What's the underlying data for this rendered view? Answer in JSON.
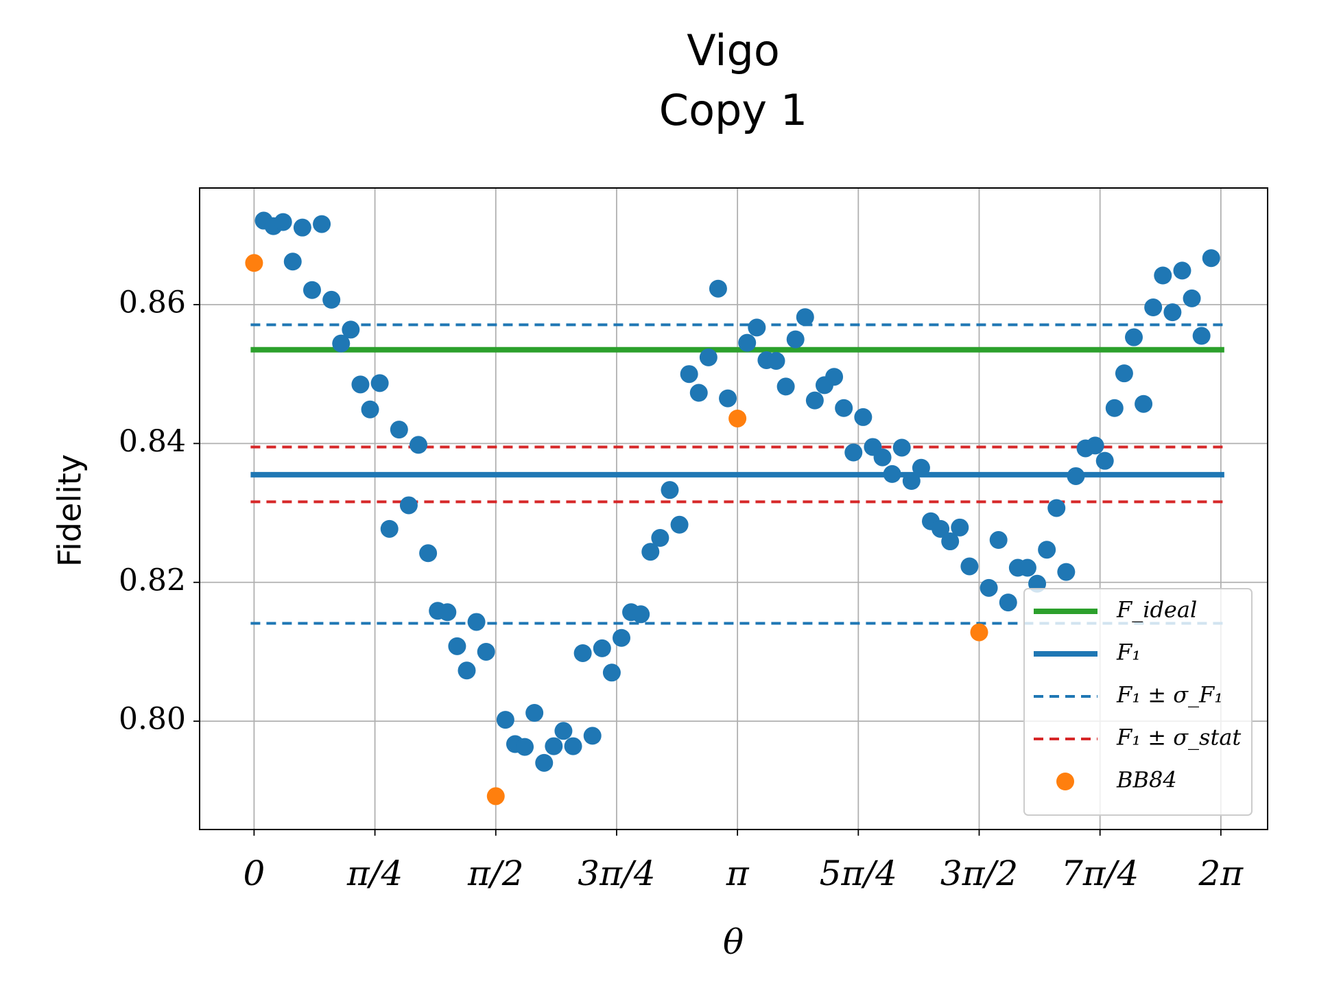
{
  "chart_data": {
    "type": "scatter",
    "title": "Vigo",
    "subtitle": "Copy 1",
    "xlabel": "θ",
    "ylabel": "Fidelity",
    "xlim": [
      -0.354,
      6.587
    ],
    "ylim": [
      0.7844,
      0.8768
    ],
    "xticks": [
      0,
      {
        "value": 0.7854,
        "label": "π/4"
      },
      {
        "value": 1.5708,
        "label": "π/2"
      },
      {
        "value": 2.3562,
        "label": "3π/4"
      },
      {
        "value": 3.1416,
        "label": "π"
      },
      {
        "value": 3.927,
        "label": "5π/4"
      },
      {
        "value": 4.7124,
        "label": "3π/2"
      },
      {
        "value": 5.4978,
        "label": "7π/4"
      },
      {
        "value": 6.2832,
        "label": "2π"
      }
    ],
    "yticks": [
      {
        "value": 0.8,
        "label": "0.80"
      },
      0.82,
      0.84,
      0.86
    ],
    "grid": true,
    "legend": "lower right",
    "lines": [
      {
        "name": "F_ideal",
        "color": "#2ca02c",
        "style": "solid",
        "values": [
          0.8535
        ]
      },
      {
        "name": "F₁",
        "color": "#1f77b4",
        "style": "solid",
        "values": [
          0.8355
        ]
      },
      {
        "name": "F₁ ± σ_F₁",
        "color": "#1f77b4",
        "style": "dashed",
        "values": [
          0.8571,
          0.8141
        ]
      },
      {
        "name": "F₁ ± σ_stat",
        "color": "#d62728",
        "style": "dashed",
        "values": [
          0.8395,
          0.8316
        ]
      }
    ],
    "series": [
      {
        "color": "#1f77b4",
        "x": [
          0.0628,
          0.1257,
          0.1885,
          0.2513,
          0.3142,
          0.377,
          0.4398,
          0.5027,
          0.5655,
          0.6283,
          0.6912,
          0.754,
          0.8168,
          0.8796,
          0.9425,
          1.0053,
          1.0681,
          1.131,
          1.1938,
          1.2566,
          1.3195,
          1.3823,
          1.4451,
          1.508,
          1.6336,
          1.6965,
          1.7593,
          1.8221,
          1.885,
          1.9478,
          2.0106,
          2.0735,
          2.1363,
          2.1991,
          2.2619,
          2.3248,
          2.3876,
          2.4504,
          2.5133,
          2.5761,
          2.6389,
          2.7018,
          2.7646,
          2.8274,
          2.8903,
          2.9531,
          3.0159,
          3.0788,
          3.2044,
          3.2673,
          3.3301,
          3.3929,
          3.4558,
          3.5186,
          3.5814,
          3.6442,
          3.7071,
          3.7699,
          3.8327,
          3.8956,
          3.9584,
          4.0212,
          4.0841,
          4.1469,
          4.2097,
          4.2726,
          4.3354,
          4.3982,
          4.4611,
          4.5239,
          4.5867,
          4.6496,
          4.7752,
          4.8381,
          4.9009,
          4.9637,
          5.0265,
          5.0894,
          5.1522,
          5.215,
          5.2779,
          5.3407,
          5.4035,
          5.4664,
          5.5292,
          5.592,
          5.6549,
          5.7177,
          5.7805,
          5.8434,
          5.9062,
          5.969,
          6.0319,
          6.0947,
          6.1575,
          6.2204
        ],
        "values": [
          0.8721,
          0.8713,
          0.8719,
          0.8662,
          0.8711,
          0.8621,
          0.8716,
          0.8607,
          0.8544,
          0.8564,
          0.8485,
          0.8449,
          0.8487,
          0.8277,
          0.842,
          0.8311,
          0.8398,
          0.8242,
          0.8159,
          0.8157,
          0.8108,
          0.8073,
          0.8143,
          0.81,
          0.8002,
          0.7967,
          0.7963,
          0.8012,
          0.794,
          0.7964,
          0.7986,
          0.7964,
          0.8098,
          0.7979,
          0.8105,
          0.807,
          0.812,
          0.8157,
          0.8154,
          0.8244,
          0.8264,
          0.8333,
          0.8283,
          0.85,
          0.8473,
          0.8524,
          0.8623,
          0.8465,
          0.8545,
          0.8567,
          0.852,
          0.8519,
          0.8482,
          0.855,
          0.8582,
          0.8462,
          0.8484,
          0.8496,
          0.8451,
          0.8387,
          0.8438,
          0.8395,
          0.838,
          0.8356,
          0.8394,
          0.8346,
          0.8365,
          0.8288,
          0.8277,
          0.8259,
          0.8279,
          0.8223,
          0.8192,
          0.8261,
          0.8171,
          0.8221,
          0.8221,
          0.8198,
          0.8247,
          0.8307,
          0.8215,
          0.8353,
          0.8393,
          0.8397,
          0.8375,
          0.8451,
          0.8501,
          0.8553,
          0.8457,
          0.8596,
          0.8642,
          0.8589,
          0.8649,
          0.8609,
          0.8555,
          0.8667
        ]
      },
      {
        "name": "BB84",
        "color": "#ff7f0e",
        "x": [
          0,
          1.5708,
          3.1416,
          4.7124
        ],
        "values": [
          0.866,
          0.7892,
          0.8436,
          0.8128
        ]
      }
    ]
  }
}
